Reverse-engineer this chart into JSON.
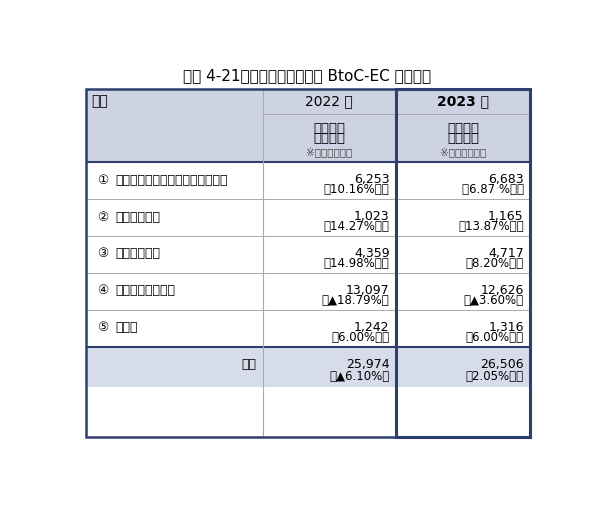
{
  "title": "図表 4-21：デジタル系分野の BtoC-EC 市場規模",
  "header_col": "分類",
  "col2022": "2022 年",
  "col2023": "2023 年",
  "subheader_market": "市場規模",
  "subheader_unit": "（億円）",
  "subheader_note": "※下段：前年比",
  "rows": [
    {
      "num": "①",
      "label": "電子出版（電子書籍・電子雑誌）",
      "val2022": "6,253",
      "chg2022": "（10.16%増）",
      "val2023": "6,683",
      "chg2023": "（6.87 %増）"
    },
    {
      "num": "②",
      "label": "有料音楽配信",
      "val2022": "1,023",
      "chg2022": "（14.27%増）",
      "val2023": "1,165",
      "chg2023": "（13.87%増）"
    },
    {
      "num": "③",
      "label": "有料動画配信",
      "val2022": "4,359",
      "chg2022": "（14.98%増）",
      "val2023": "4,717",
      "chg2023": "（8.20%増）"
    },
    {
      "num": "④",
      "label": "オンラインゲーム",
      "val2022": "13,097",
      "chg2022": "（▲18.79%）",
      "val2023": "12,626",
      "chg2023": "（▲3.60%）"
    },
    {
      "num": "⑤",
      "label": "その他",
      "val2022": "1,242",
      "chg2022": "（6.00%増）",
      "val2023": "1,316",
      "chg2023": "（6.00%増）"
    }
  ],
  "total_label": "合計",
  "total_val2022": "25,974",
  "total_chg2022": "（▲6.10%）",
  "total_val2023": "26,506",
  "total_chg2023": "（2.05%増）",
  "header_bg": "#cdd3e3",
  "data_row_bg": "#ffffff",
  "col3_data_bg": "#ffffff",
  "total_bg": "#d6dce9",
  "border_main": "#2d3f6e",
  "border_light": "#aaaaaa",
  "text_color": "#000000",
  "title_fontsize": 11,
  "header_fontsize": 10,
  "cell_fontsize": 9,
  "note_fontsize": 7.5
}
